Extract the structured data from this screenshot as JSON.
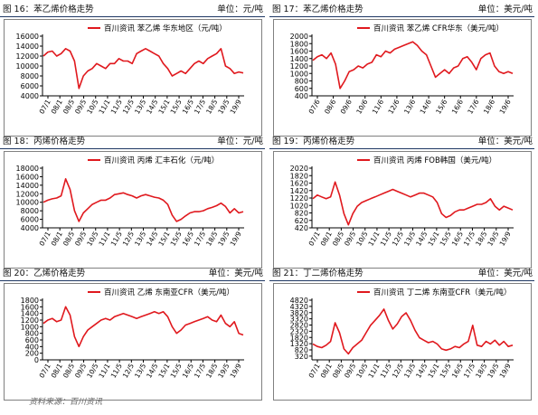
{
  "source": "资料来源：百川资讯",
  "colors": {
    "line": "#e0191e",
    "axis": "#000000",
    "caption_rule": "#1f3864"
  },
  "charts": [
    {
      "fig": "图 16：苯乙烯价格走势",
      "unit": "单位：元/吨",
      "chart_data": {
        "type": "line",
        "legend": "百川资讯 苯乙烯 华东地区（元/吨）",
        "legend_position": "top",
        "ylim": [
          4000,
          16000
        ],
        "yticks": [
          "16000",
          "14000",
          "12000",
          "10000",
          "8000",
          "6000",
          "4000"
        ],
        "ytick_values": [
          16000,
          14000,
          12000,
          10000,
          8000,
          6000,
          4000
        ],
        "xticks": [
          "07/1",
          "08/1",
          "08/5",
          "09/5",
          "10/5",
          "11/1",
          "11/5",
          "12/5",
          "13/5",
          "14/5",
          "15/1",
          "15/5",
          "16/5",
          "17/5",
          "18/5",
          "19/5",
          "19/9"
        ],
        "series": [
          {
            "values": [
              12000,
              12800,
              13000,
              12000,
              12500,
              13500,
              13000,
              11000,
              5500,
              8000,
              9000,
              9500,
              10500,
              10000,
              9500,
              10500,
              10500,
              11500,
              11000,
              11000,
              10500,
              12500,
              13000,
              13500,
              13000,
              12500,
              12000,
              10500,
              9500,
              8000,
              8500,
              9000,
              8500,
              9500,
              10500,
              11000,
              10500,
              11500,
              12000,
              12500,
              13500,
              10000,
              9500,
              8500,
              8800,
              8600
            ]
          }
        ]
      }
    },
    {
      "fig": "图 17：苯乙烯价格走势",
      "unit": "单位：美元/吨",
      "chart_data": {
        "type": "line",
        "legend": "百川资讯 苯乙烯 CFR华东（美元/吨）",
        "legend_position": "top",
        "ylim": [
          400,
          2000
        ],
        "yticks": [
          "2000",
          "1800",
          "1600",
          "1400",
          "1200",
          "1000",
          "800",
          "600",
          "400"
        ],
        "ytick_values": [
          2000,
          1800,
          1600,
          1400,
          1200,
          1000,
          800,
          600,
          400
        ],
        "xticks": [
          "07/6",
          "08/6",
          "09/6",
          "10/6",
          "11/6",
          "12/6",
          "13/6",
          "14/6",
          "15/6",
          "16/6",
          "17/6",
          "18/6",
          "19/6"
        ],
        "series": [
          {
            "values": [
              1350,
              1450,
              1500,
              1400,
              1550,
              1250,
              600,
              800,
              1050,
              1100,
              1200,
              1150,
              1250,
              1300,
              1500,
              1450,
              1600,
              1550,
              1650,
              1700,
              1750,
              1800,
              1850,
              1750,
              1600,
              1500,
              1200,
              900,
              1000,
              1100,
              1000,
              1150,
              1200,
              1400,
              1450,
              1300,
              1100,
              1400,
              1500,
              1550,
              1200,
              1050,
              1000,
              1050,
              1000
            ]
          }
        ]
      }
    },
    {
      "fig": "图 18：丙烯价格走势",
      "unit": "单位：元/吨",
      "chart_data": {
        "type": "line",
        "legend": "百川资讯 丙烯 汇丰石化（元/吨）",
        "legend_position": "top",
        "ylim": [
          4000,
          18000
        ],
        "yticks": [
          "18000",
          "16000",
          "14000",
          "12000",
          "10000",
          "8000",
          "6000",
          "4000"
        ],
        "ytick_values": [
          18000,
          16000,
          14000,
          12000,
          10000,
          8000,
          6000,
          4000
        ],
        "xticks": [
          "07/1",
          "08/1",
          "08/5",
          "09/5",
          "10/5",
          "11/1",
          "11/5",
          "12/5",
          "13/5",
          "14/5",
          "15/1",
          "15/5",
          "16/5",
          "17/5",
          "18/5",
          "19/5",
          "19/9"
        ],
        "series": [
          {
            "values": [
              10000,
              10500,
              10800,
              11000,
              11500,
              15500,
              13000,
              8000,
              5500,
              7500,
              8500,
              9500,
              10000,
              10500,
              10500,
              11000,
              11800,
              12000,
              12200,
              11800,
              11500,
              11000,
              11500,
              11800,
              11500,
              11200,
              11000,
              10500,
              9500,
              7000,
              5500,
              6000,
              6800,
              7500,
              7800,
              7800,
              8000,
              8500,
              8800,
              9200,
              9800,
              9000,
              7500,
              8500,
              7500,
              7800
            ]
          }
        ]
      }
    },
    {
      "fig": "图 19：丙烯价格走势",
      "unit": "单位：美元/吨",
      "chart_data": {
        "type": "line",
        "legend": "百川资讯 丙烯 FOB韩国（美元/吨）",
        "legend_position": "top",
        "ylim": [
          420,
          2020
        ],
        "yticks": [
          "2020",
          "1820",
          "1620",
          "1420",
          "1220",
          "1020",
          "820",
          "620",
          "420"
        ],
        "ytick_values": [
          2020,
          1820,
          1620,
          1420,
          1220,
          1020,
          820,
          620,
          420
        ],
        "xticks": [
          "07/1",
          "08/1",
          "08/5",
          "09/5",
          "10/5",
          "11/1",
          "11/5",
          "12/5",
          "13/5",
          "14/5",
          "15/1",
          "15/5",
          "16/5",
          "17/5",
          "18/5",
          "19/5",
          "19/9"
        ],
        "series": [
          {
            "values": [
              1200,
              1300,
              1250,
              1200,
              1250,
              1650,
              1300,
              800,
              500,
              800,
              1000,
              1100,
              1150,
              1200,
              1250,
              1300,
              1350,
              1400,
              1450,
              1400,
              1350,
              1300,
              1250,
              1300,
              1350,
              1350,
              1300,
              1250,
              1100,
              800,
              700,
              750,
              850,
              900,
              900,
              950,
              1000,
              1050,
              1050,
              1100,
              1200,
              1000,
              900,
              1000,
              950,
              900
            ]
          }
        ]
      }
    },
    {
      "fig": "图 20：乙烯价格走势",
      "unit": "单位：美元/吨",
      "chart_data": {
        "type": "line",
        "legend": "百川资讯 乙烯 东南亚CFR（美元/吨）",
        "legend_position": "top",
        "ylim": [
          0,
          1800
        ],
        "yticks": [
          "1800",
          "1600",
          "1400",
          "1200",
          "1000",
          "800",
          "600",
          "400",
          "200",
          "0"
        ],
        "ytick_values": [
          1800,
          1600,
          1400,
          1200,
          1000,
          800,
          600,
          400,
          200,
          0
        ],
        "xticks": [
          "07/1",
          "08/1",
          "08/5",
          "09/5",
          "10/5",
          "11/1",
          "11/5",
          "12/5",
          "13/5",
          "14/5",
          "15/1",
          "15/5",
          "16/5",
          "17/5",
          "18/5",
          "19/5",
          "19/9"
        ],
        "series": [
          {
            "values": [
              1100,
              1200,
              1250,
              1150,
              1200,
              1600,
              1350,
              700,
              400,
              700,
              900,
              1000,
              1100,
              1200,
              1250,
              1200,
              1300,
              1350,
              1400,
              1350,
              1300,
              1250,
              1300,
              1350,
              1400,
              1450,
              1400,
              1450,
              1300,
              1000,
              800,
              900,
              1050,
              1100,
              1150,
              1200,
              1250,
              1300,
              1200,
              1150,
              1350,
              1100,
              1000,
              1150,
              800,
              750
            ]
          }
        ]
      }
    },
    {
      "fig": "图 21：丁二烯价格走势",
      "unit": "单位：美元/吨",
      "chart_data": {
        "type": "line",
        "legend": "百川资讯 丁二烯 东南亚CFR（美元/吨）",
        "legend_position": "top",
        "ylim": [
          20,
          4820
        ],
        "yticks": [
          "4820",
          "4320",
          "3820",
          "3320",
          "2820",
          "2320",
          "1820",
          "1320",
          "820",
          "320"
        ],
        "ytick_values": [
          4820,
          4320,
          3820,
          3320,
          2820,
          2320,
          1820,
          1320,
          820,
          320
        ],
        "xticks": [
          "07/1",
          "08/1",
          "08/5",
          "09/5",
          "10/5",
          "11/1",
          "11/5",
          "12/5",
          "13/5",
          "14/5",
          "15/1",
          "15/5",
          "16/5",
          "17/5",
          "18/5",
          "19/5",
          "19/9"
        ],
        "series": [
          {
            "values": [
              1300,
              1100,
              1000,
              1200,
              1500,
              3000,
              2200,
              900,
              500,
              1000,
              1300,
              1600,
              2200,
              2800,
              3200,
              3600,
              4100,
              3200,
              2500,
              2900,
              3500,
              3800,
              3200,
              2400,
              1800,
              1600,
              1400,
              1500,
              1300,
              900,
              800,
              900,
              1100,
              1000,
              1300,
              1500,
              2800,
              1200,
              1100,
              1500,
              1300,
              1600,
              1200,
              1500,
              1100,
              1200
            ]
          }
        ]
      }
    }
  ]
}
